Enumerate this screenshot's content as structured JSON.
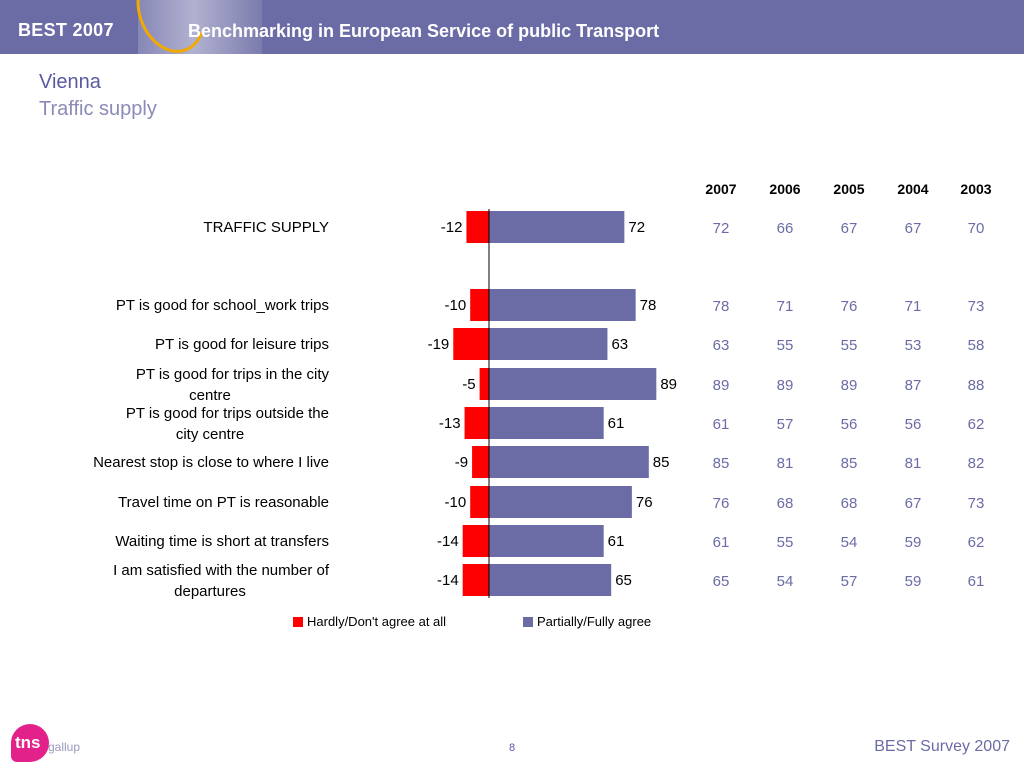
{
  "header": {
    "left_title": "BEST 2007",
    "subtitle": "Benchmarking in European Service of public Transport"
  },
  "slide": {
    "city": "Vienna",
    "title": "Traffic supply"
  },
  "chart_data": {
    "type": "bar",
    "orientation": "horizontal-diverging",
    "categories": [
      "TRAFFIC SUPPLY",
      "PT is good for school_work trips",
      "PT is good for leisure trips",
      "PT is good for trips in the city centre",
      "PT is good for trips outside the city centre",
      "Nearest stop is close to where I live",
      "Travel time on PT is reasonable",
      "Waiting time is short at transfers",
      "I am satisfied with the number of departures"
    ],
    "series": [
      {
        "name": "Hardly/Don't agree at all",
        "color": "#ff0000",
        "values": [
          -12,
          -10,
          -19,
          -5,
          -13,
          -9,
          -10,
          -14,
          -14
        ]
      },
      {
        "name": "Partially/Fully agree",
        "color": "#6b6ba6",
        "values": [
          72,
          78,
          63,
          89,
          61,
          85,
          76,
          61,
          65
        ]
      }
    ],
    "table": {
      "years": [
        "2007",
        "2006",
        "2005",
        "2004",
        "2003"
      ],
      "rows": [
        [
          "72",
          "66",
          "67",
          "67",
          "70"
        ],
        [
          "78",
          "71",
          "76",
          "71",
          "73"
        ],
        [
          "63",
          "55",
          "55",
          "53",
          "58"
        ],
        [
          "89",
          "89",
          "89",
          "87",
          "88"
        ],
        [
          "61",
          "57",
          "56",
          "56",
          "62"
        ],
        [
          "85",
          "81",
          "85",
          "81",
          "82"
        ],
        [
          "76",
          "68",
          "68",
          "67",
          "73"
        ],
        [
          "61",
          "55",
          "54",
          "59",
          "62"
        ],
        [
          "65",
          "54",
          "57",
          "59",
          "61"
        ]
      ]
    },
    "legend_position": "bottom",
    "grid": false
  },
  "footer": {
    "logo": "tns",
    "logo_sub": "gallup",
    "page": "8",
    "right": "BEST Survey 2007"
  }
}
